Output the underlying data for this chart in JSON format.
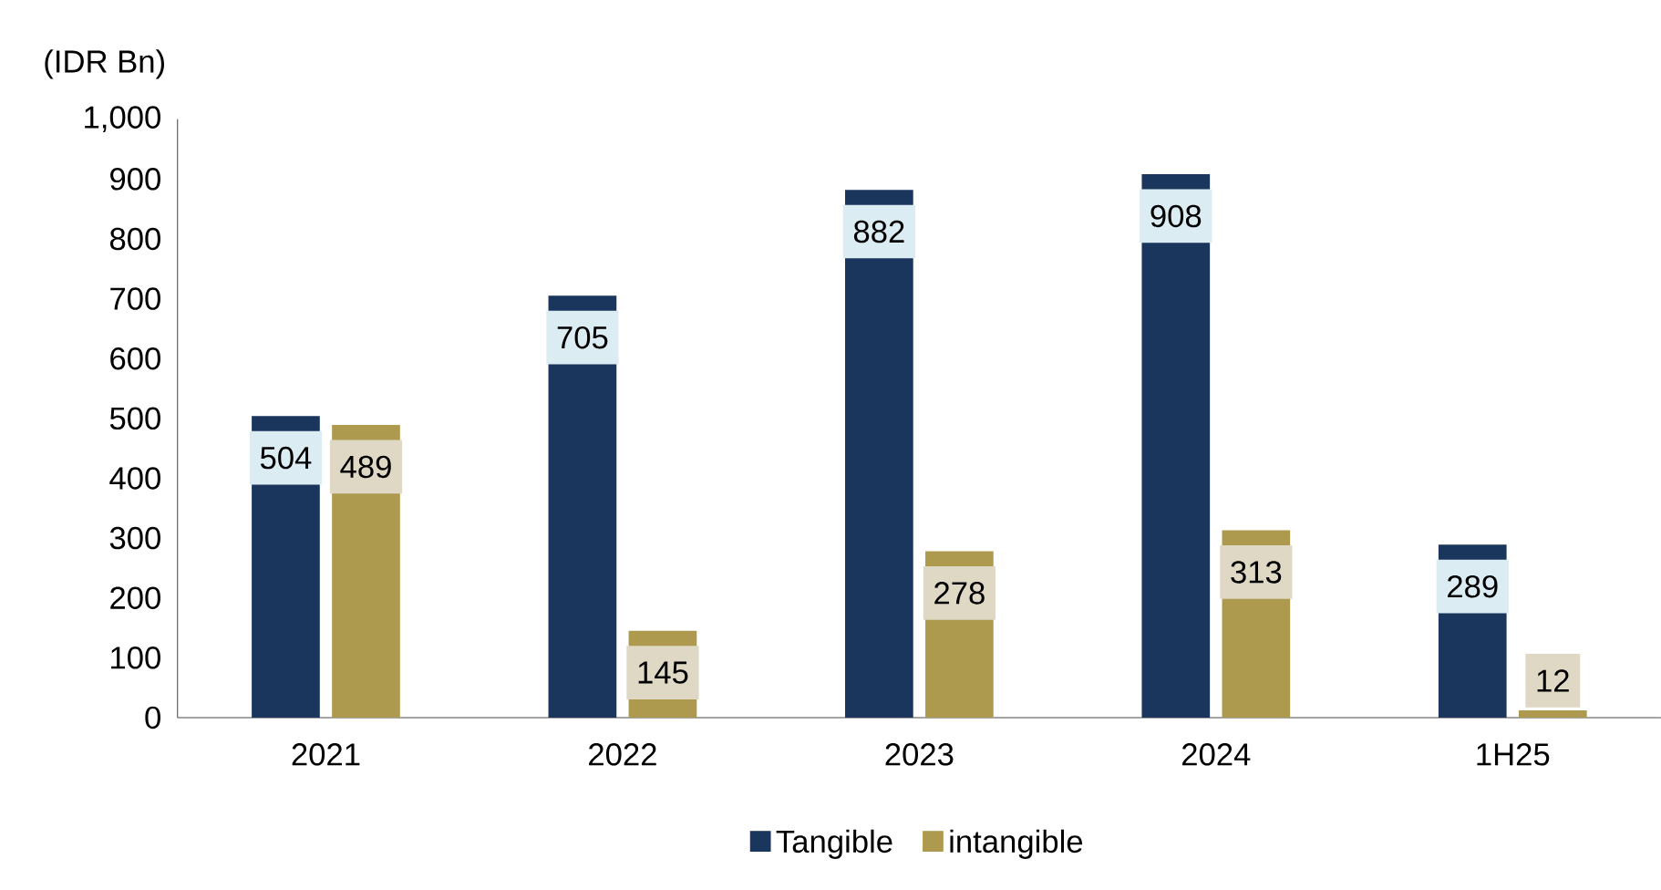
{
  "chart_data": {
    "type": "bar",
    "ylabel": "(IDR Bn)",
    "categories": [
      "2021",
      "2022",
      "2023",
      "2024",
      "1H25"
    ],
    "series": [
      {
        "name": "Tangible",
        "color": "#1b365d",
        "values": [
          504,
          705,
          882,
          908,
          289
        ]
      },
      {
        "name": "intangible",
        "color": "#ad9a4e",
        "values": [
          489,
          145,
          278,
          313,
          12
        ]
      }
    ],
    "ylim": [
      0,
      1000
    ],
    "yticks": [
      0,
      100,
      200,
      300,
      400,
      500,
      600,
      700,
      800,
      900,
      {
        "value": 1000,
        "label": "1,000"
      }
    ],
    "data_labels": true,
    "legend": "bottom",
    "grid": false
  }
}
